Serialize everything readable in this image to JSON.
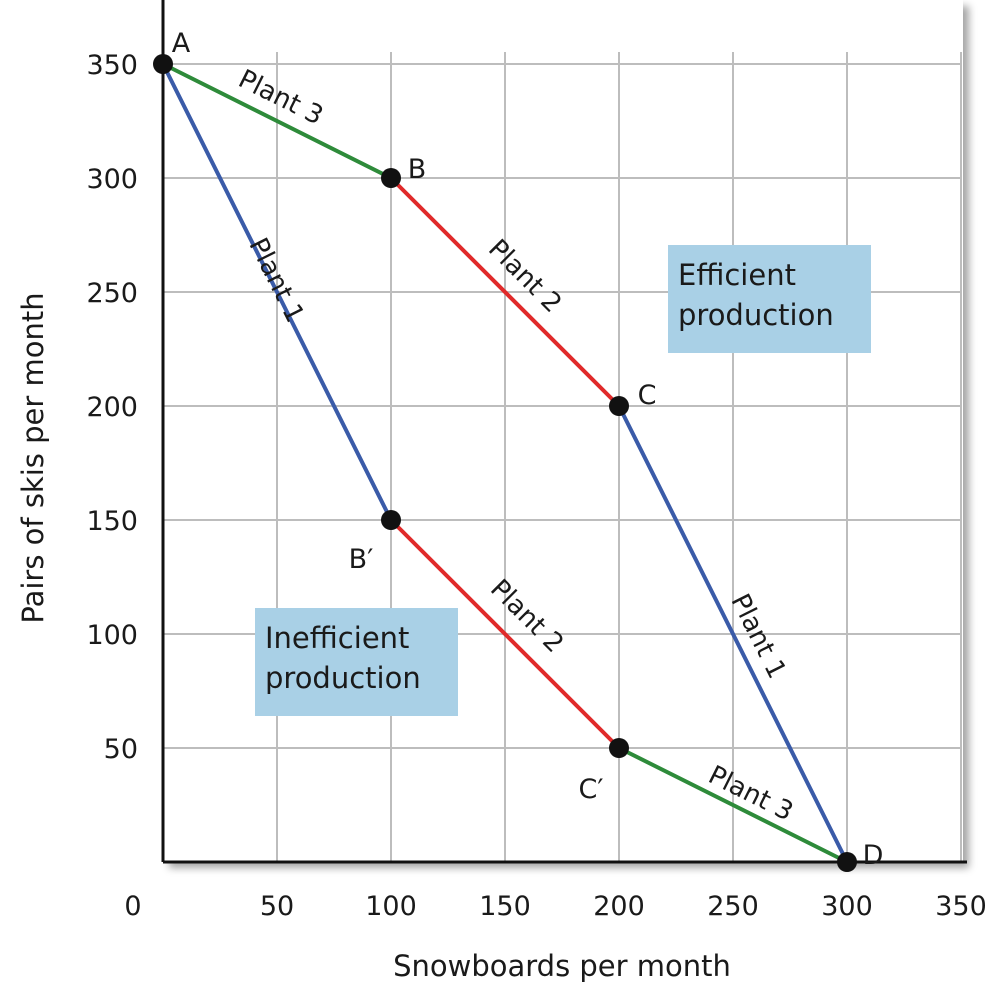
{
  "chart_data": {
    "type": "line",
    "xlabel": "Snowboards per month",
    "ylabel": "Pairs of skis per month",
    "xlim": [
      0,
      350
    ],
    "ylim": [
      0,
      350
    ],
    "x_ticks": [
      "0",
      "50",
      "100",
      "150",
      "200",
      "250",
      "300",
      "350"
    ],
    "y_ticks": [
      "50",
      "100",
      "150",
      "200",
      "250",
      "300",
      "350"
    ],
    "grid": true,
    "points": [
      {
        "label": "A",
        "x": 0,
        "y": 350
      },
      {
        "label": "B",
        "x": 100,
        "y": 300
      },
      {
        "label": "C",
        "x": 200,
        "y": 200
      },
      {
        "label": "D",
        "x": 300,
        "y": 0
      },
      {
        "label": "B′",
        "x": 100,
        "y": 150
      },
      {
        "label": "C′",
        "x": 200,
        "y": 50
      }
    ],
    "series": [
      {
        "name": "Efficient production",
        "points": [
          [
            0,
            350
          ],
          [
            100,
            300
          ],
          [
            200,
            200
          ],
          [
            300,
            0
          ]
        ]
      },
      {
        "name": "Inefficient production",
        "points": [
          [
            0,
            350
          ],
          [
            100,
            150
          ],
          [
            200,
            50
          ],
          [
            300,
            0
          ]
        ]
      }
    ],
    "segments": [
      {
        "label": "Plant 3",
        "from": [
          0,
          350
        ],
        "to": [
          100,
          300
        ],
        "color": "#2e8b3a"
      },
      {
        "label": "Plant 2",
        "from": [
          100,
          300
        ],
        "to": [
          200,
          200
        ],
        "color": "#e02a2a"
      },
      {
        "label": "Plant 1",
        "from": [
          200,
          200
        ],
        "to": [
          300,
          0
        ],
        "color": "#3a5ba8"
      },
      {
        "label": "Plant 1",
        "from": [
          0,
          350
        ],
        "to": [
          100,
          150
        ],
        "color": "#3a5ba8"
      },
      {
        "label": "Plant 2",
        "from": [
          100,
          150
        ],
        "to": [
          200,
          50
        ],
        "color": "#e02a2a"
      },
      {
        "label": "Plant 3",
        "from": [
          200,
          50
        ],
        "to": [
          300,
          0
        ],
        "color": "#2e8b3a"
      }
    ],
    "regions": [
      {
        "lines": [
          "Efficient",
          "production"
        ]
      },
      {
        "lines": [
          "Inefficient",
          "production"
        ]
      }
    ]
  },
  "colors": {
    "grid": "#bdbdbd",
    "axis": "#111111",
    "region_fill": "#a9d0e6",
    "point": "#111111"
  }
}
